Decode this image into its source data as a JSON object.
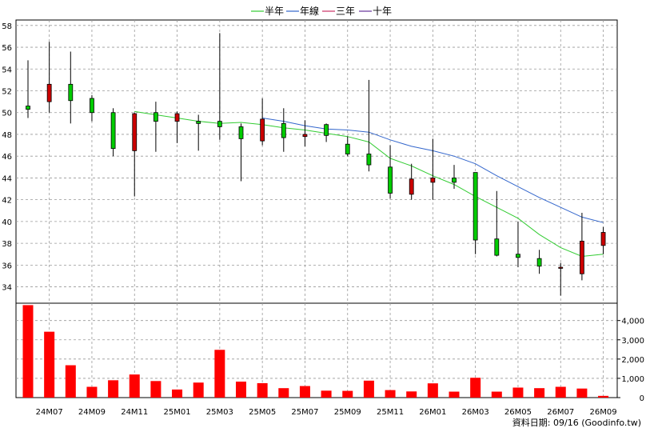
{
  "chart_data": [
    {
      "type": "candlestick",
      "legend": [
        "半年",
        "年線",
        "三年",
        "十年"
      ],
      "legend_placement": "top-center",
      "y_ticks": [
        34,
        36,
        38,
        40,
        42,
        44,
        46,
        48,
        50,
        52,
        54,
        56,
        58
      ],
      "ylim": [
        32.5,
        58.5
      ],
      "grid": true,
      "up_color": "#00cc00",
      "down_color": "#cc0000",
      "colors": {
        "半年": "#33cc33",
        "年線": "#3366cc",
        "三年": "#cc3366",
        "十年": "#663399"
      },
      "candles": [
        {
          "open": 50.3,
          "close": 50.6,
          "high": 54.8,
          "low": 49.5
        },
        {
          "open": 52.6,
          "close": 51.0,
          "high": 56.5,
          "low": 50.0
        },
        {
          "open": 51.1,
          "close": 52.6,
          "high": 55.6,
          "low": 49.0
        },
        {
          "open": 50.0,
          "close": 51.3,
          "high": 51.6,
          "low": 49.2
        },
        {
          "open": 46.7,
          "close": 50.0,
          "high": 50.4,
          "low": 46.0
        },
        {
          "open": 49.9,
          "close": 46.5,
          "high": 50.0,
          "low": 42.3
        },
        {
          "open": 49.2,
          "close": 50.0,
          "high": 51.0,
          "low": 46.4
        },
        {
          "open": 49.9,
          "close": 49.2,
          "high": 50.1,
          "low": 47.2
        },
        {
          "open": 49.0,
          "close": 49.2,
          "high": 49.8,
          "low": 46.5
        },
        {
          "open": 48.7,
          "close": 49.2,
          "high": 57.3,
          "low": 47.5
        },
        {
          "open": 47.6,
          "close": 48.7,
          "high": 49.0,
          "low": 43.7
        },
        {
          "open": 49.4,
          "close": 47.4,
          "high": 51.3,
          "low": 47.0
        },
        {
          "open": 47.7,
          "close": 49.0,
          "high": 50.4,
          "low": 46.4
        },
        {
          "open": 48.0,
          "close": 47.8,
          "high": 49.3,
          "low": 46.9
        },
        {
          "open": 47.9,
          "close": 48.9,
          "high": 49.0,
          "low": 47.3
        },
        {
          "open": 46.2,
          "close": 47.1,
          "high": 47.8,
          "low": 46.0
        },
        {
          "open": 45.2,
          "close": 46.2,
          "high": 53.0,
          "low": 44.6
        },
        {
          "open": 42.6,
          "close": 45.0,
          "high": 47.0,
          "low": 42.1
        },
        {
          "open": 43.9,
          "close": 42.5,
          "high": 45.3,
          "low": 42.0
        },
        {
          "open": 44.0,
          "close": 43.6,
          "high": 47.6,
          "low": 42.0
        },
        {
          "open": 43.6,
          "close": 44.0,
          "high": 45.2,
          "low": 43.0
        },
        {
          "open": 38.3,
          "close": 44.5,
          "high": 44.5,
          "low": 37.0
        },
        {
          "open": 36.9,
          "close": 38.4,
          "high": 42.8,
          "low": 36.8
        },
        {
          "open": 36.7,
          "close": 37.0,
          "high": 40.0,
          "low": 35.8
        },
        {
          "open": 35.9,
          "close": 36.6,
          "high": 37.4,
          "low": 35.2
        },
        {
          "open": 35.8,
          "close": 35.7,
          "high": 36.2,
          "low": 33.2
        },
        {
          "open": 38.2,
          "close": 35.2,
          "high": 40.8,
          "low": 34.6
        },
        {
          "open": 39.0,
          "close": 37.8,
          "high": 39.5,
          "low": 37.0
        }
      ],
      "half_year_line": [
        null,
        null,
        null,
        null,
        null,
        50.1,
        49.8,
        49.5,
        49.2,
        49.0,
        49.1,
        48.9,
        48.6,
        48.4,
        48.1,
        47.8,
        47.3,
        45.8,
        45.1,
        44.2,
        43.4,
        42.3,
        41.3,
        40.3,
        38.8,
        37.6,
        36.8,
        37.0
      ],
      "year_line": [
        null,
        null,
        null,
        null,
        null,
        null,
        null,
        null,
        null,
        null,
        null,
        49.5,
        49.2,
        48.8,
        48.5,
        48.4,
        48.2,
        47.5,
        46.9,
        46.5,
        46.0,
        45.3,
        44.2,
        43.2,
        42.2,
        41.3,
        40.4,
        39.9
      ]
    },
    {
      "type": "bar",
      "ylim": [
        0,
        4900
      ],
      "y_ticks": [
        0,
        1000,
        2000,
        3000,
        4000
      ],
      "y_tick_labels": [
        "0",
        "1,000",
        "2,000",
        "3,000",
        "4,000"
      ],
      "bar_color": "#ff0000",
      "values": [
        4800,
        3420,
        1680,
        560,
        900,
        1200,
        860,
        420,
        780,
        2480,
        830,
        750,
        490,
        600,
        360,
        350,
        880,
        390,
        320,
        740,
        310,
        1030,
        310,
        520,
        490,
        560,
        470,
        90
      ]
    }
  ],
  "x_tick_labels": [
    "24M07",
    "24M09",
    "24M11",
    "25M01",
    "25M03",
    "25M05",
    "25M07",
    "25M09",
    "25M11",
    "26M01",
    "26M03",
    "26M05",
    "26M07",
    "26M09"
  ],
  "source_text": "資料日期: 09/16  (Goodinfo.tw)"
}
